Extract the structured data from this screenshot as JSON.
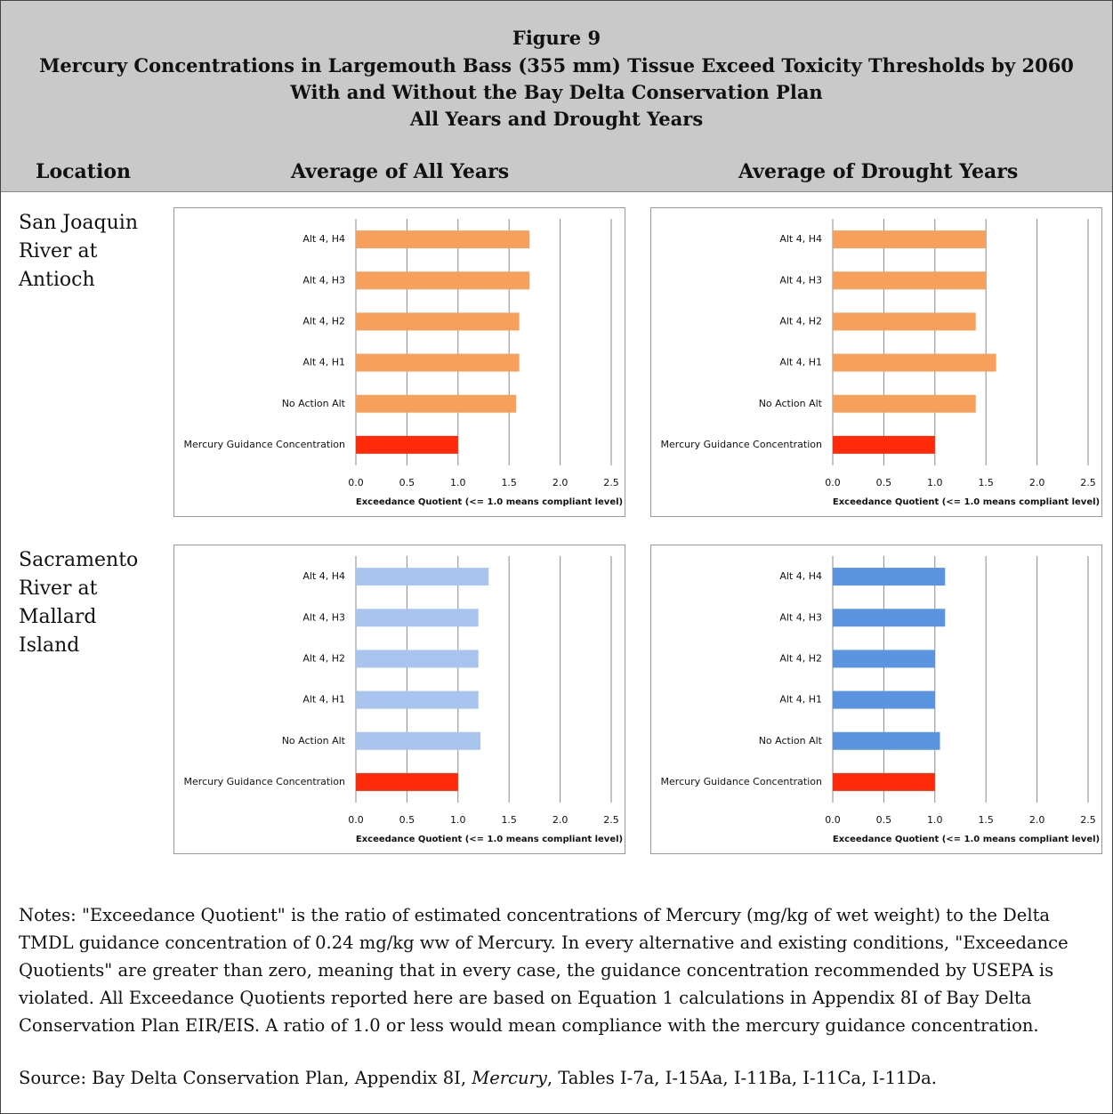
{
  "header": {
    "figure": "Figure 9",
    "title_lines": [
      "Mercury Concentrations in Largemouth Bass (355 mm) Tissue Exceed Toxicity Thresholds by 2060",
      "With and Without the Bay Delta Conservation Plan",
      "All Years and Drought Years"
    ],
    "columns": [
      "Location",
      "Average of All Years",
      "Average of Drought Years"
    ]
  },
  "locations": [
    "San Joaquin River at Antioch",
    "Sacramento River at Mallard Island"
  ],
  "chart_data": [
    {
      "type": "bar",
      "orientation": "horizontal",
      "categories": [
        "Alt 4, H4",
        "Alt 4, H3",
        "Alt 4, H2",
        "Alt 4, H1",
        "No Action Alt",
        "Mercury Guidance Concentration"
      ],
      "values": [
        1.7,
        1.7,
        1.6,
        1.6,
        1.57,
        1.0
      ],
      "colors": [
        "#f7a05c",
        "#f7a05c",
        "#f7a05c",
        "#f7a05c",
        "#f7a05c",
        "#ff2a0a"
      ],
      "xlim": [
        0,
        2.5
      ],
      "xticks": [
        {
          "value": 0,
          "label": "0.0"
        },
        0.5,
        {
          "value": 1,
          "label": "1.0"
        },
        1.5,
        {
          "value": 2,
          "label": "2.0"
        },
        2.5
      ],
      "xlabel": "Exceedance Quotient (<= 1.0 means compliant level)",
      "grid": true
    },
    {
      "type": "bar",
      "orientation": "horizontal",
      "categories": [
        "Alt 4, H4",
        "Alt 4, H3",
        "Alt 4, H2",
        "Alt 4, H1",
        "No Action Alt",
        "Mercury Guidance Concentration"
      ],
      "values": [
        1.5,
        1.5,
        1.4,
        1.6,
        1.4,
        1.0
      ],
      "colors": [
        "#f7a05c",
        "#f7a05c",
        "#f7a05c",
        "#f7a05c",
        "#f7a05c",
        "#ff2a0a"
      ],
      "xlim": [
        0,
        2.5
      ],
      "xticks": [
        {
          "value": 0,
          "label": "0.0"
        },
        0.5,
        {
          "value": 1,
          "label": "1.0"
        },
        1.5,
        {
          "value": 2,
          "label": "2.0"
        },
        2.5
      ],
      "xlabel": "Exceedance Quotient (<= 1.0 means compliant level)",
      "grid": true
    },
    {
      "type": "bar",
      "orientation": "horizontal",
      "categories": [
        "Alt 4, H4",
        "Alt 4, H3",
        "Alt 4, H2",
        "Alt 4, H1",
        "No Action Alt",
        "Mercury Guidance Concentration"
      ],
      "values": [
        1.3,
        1.2,
        1.2,
        1.2,
        1.22,
        1.0
      ],
      "colors": [
        "#a9c5ef",
        "#a9c5ef",
        "#a9c5ef",
        "#a9c5ef",
        "#a9c5ef",
        "#ff2a0a"
      ],
      "xlim": [
        0,
        2.5
      ],
      "xticks": [
        {
          "value": 0,
          "label": "0.0"
        },
        0.5,
        {
          "value": 1,
          "label": "1.0"
        },
        1.5,
        {
          "value": 2,
          "label": "2.0"
        },
        2.5
      ],
      "xlabel": "Exceedance Quotient (<= 1.0 means compliant level)",
      "grid": true
    },
    {
      "type": "bar",
      "orientation": "horizontal",
      "categories": [
        "Alt 4, H4",
        "Alt 4, H3",
        "Alt 4, H2",
        "Alt 4, H1",
        "No Action Alt",
        "Mercury Guidance Concentration"
      ],
      "values": [
        1.1,
        1.1,
        1.0,
        1.0,
        1.05,
        1.0
      ],
      "colors": [
        "#5b95e2",
        "#5b95e2",
        "#5b95e2",
        "#5b95e2",
        "#5b95e2",
        "#ff2a0a"
      ],
      "xlim": [
        0,
        2.5
      ],
      "xticks": [
        {
          "value": 0,
          "label": "0.0"
        },
        0.5,
        {
          "value": 1,
          "label": "1.0"
        },
        1.5,
        {
          "value": 2,
          "label": "2.0"
        },
        2.5
      ],
      "xlabel": "Exceedance Quotient (<= 1.0 means compliant level)",
      "grid": true
    }
  ],
  "notes": "Notes: \"Exceedance Quotient\" is the ratio of estimated concentrations of Mercury (mg/kg of wet weight) to the Delta TMDL guidance concentration of 0.24 mg/kg ww of Mercury. In every alternative and existing conditions, \"Exceedance Quotients\" are greater than zero, meaning that in every case, the guidance concentration recommended by USEPA is violated. All Exceedance Quotients reported here are based on Equation 1 calculations in Appendix 8I of Bay Delta Conservation Plan EIR/EIS. A ratio of 1.0 or less would mean compliance with the mercury guidance concentration.",
  "source": [
    "Source: Bay Delta Conservation Plan, Appendix 8I, ",
    "Mercury",
    ", Tables  I-7a, I-15Aa, I-11Ba, I-11Ca, I-11Da."
  ]
}
